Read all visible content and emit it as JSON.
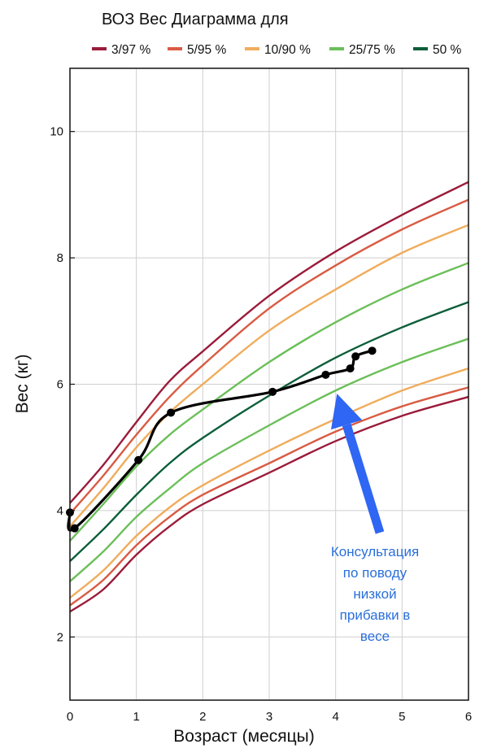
{
  "chart_data": {
    "type": "line",
    "title": "ВОЗ Вес Диаграмма для",
    "xlabel": "Возраст (месяцы)",
    "ylabel": "Вес (кг)",
    "xlim": [
      0,
      6
    ],
    "ylim": [
      1,
      11
    ],
    "xticks": [
      0,
      1,
      2,
      3,
      4,
      5,
      6
    ],
    "yticks": [
      2,
      4,
      6,
      8,
      10
    ],
    "grid": true,
    "legend_position": "top",
    "legend": [
      {
        "label": "3/97 %",
        "color": "#9b1b3a"
      },
      {
        "label": "5/95 %",
        "color": "#d95b43"
      },
      {
        "label": "10/90 %",
        "color": "#f0ac5c"
      },
      {
        "label": "25/75 %",
        "color": "#6bbf59"
      },
      {
        "label": "50 %",
        "color": "#0b5e3a"
      }
    ],
    "x": [
      0,
      0.5,
      1,
      1.5,
      2,
      3,
      4,
      5,
      6
    ],
    "percentile_curves": [
      {
        "group": "3/97 %",
        "color": "#9b1b3a",
        "values": [
          2.4,
          2.75,
          3.3,
          3.75,
          4.1,
          4.6,
          5.1,
          5.5,
          5.8
        ]
      },
      {
        "group": "5/95 %",
        "color": "#d95b43",
        "values": [
          2.5,
          2.9,
          3.45,
          3.9,
          4.25,
          4.75,
          5.25,
          5.65,
          5.95
        ]
      },
      {
        "group": "10/90 %",
        "color": "#f0ac5c",
        "values": [
          2.62,
          3.05,
          3.6,
          4.05,
          4.4,
          4.95,
          5.45,
          5.9,
          6.25
        ]
      },
      {
        "group": "25/75 %",
        "color": "#6bbf59",
        "values": [
          2.88,
          3.35,
          3.9,
          4.35,
          4.75,
          5.35,
          5.9,
          6.35,
          6.72
        ]
      },
      {
        "group": "50 %",
        "color": "#0b5e3a",
        "values": [
          3.2,
          3.7,
          4.25,
          4.75,
          5.15,
          5.82,
          6.42,
          6.9,
          7.3
        ]
      },
      {
        "group": "25/75 %",
        "color": "#6bbf59",
        "values": [
          3.52,
          4.1,
          4.7,
          5.2,
          5.6,
          6.35,
          6.98,
          7.5,
          7.92
        ]
      },
      {
        "group": "10/90 %",
        "color": "#f0ac5c",
        "values": [
          3.75,
          4.35,
          5.0,
          5.55,
          6.0,
          6.85,
          7.5,
          8.08,
          8.52
        ]
      },
      {
        "group": "5/95 %",
        "color": "#d95b43",
        "values": [
          3.95,
          4.55,
          5.2,
          5.8,
          6.3,
          7.2,
          7.88,
          8.45,
          8.92
        ]
      },
      {
        "group": "3/97 %",
        "color": "#9b1b3a",
        "values": [
          4.12,
          4.72,
          5.4,
          6.05,
          6.52,
          7.4,
          8.1,
          8.68,
          9.2
        ]
      }
    ],
    "measurements": {
      "color": "#000000",
      "points": [
        {
          "x": 0.0,
          "y": 3.97
        },
        {
          "x": 0.07,
          "y": 3.72
        },
        {
          "x": 1.03,
          "y": 4.8
        },
        {
          "x": 1.52,
          "y": 5.55
        },
        {
          "x": 3.05,
          "y": 5.88
        },
        {
          "x": 3.85,
          "y": 6.15
        },
        {
          "x": 4.22,
          "y": 6.25
        },
        {
          "x": 4.3,
          "y": 6.44
        },
        {
          "x": 4.55,
          "y": 6.53
        }
      ]
    },
    "annotation": {
      "lines": [
        "Консультация",
        "по поводу",
        "низкой",
        "прибавки в",
        "весе"
      ],
      "arrow_color": "#2f66f3",
      "arrow_target": {
        "x": 4.02,
        "y": 5.85
      }
    }
  }
}
